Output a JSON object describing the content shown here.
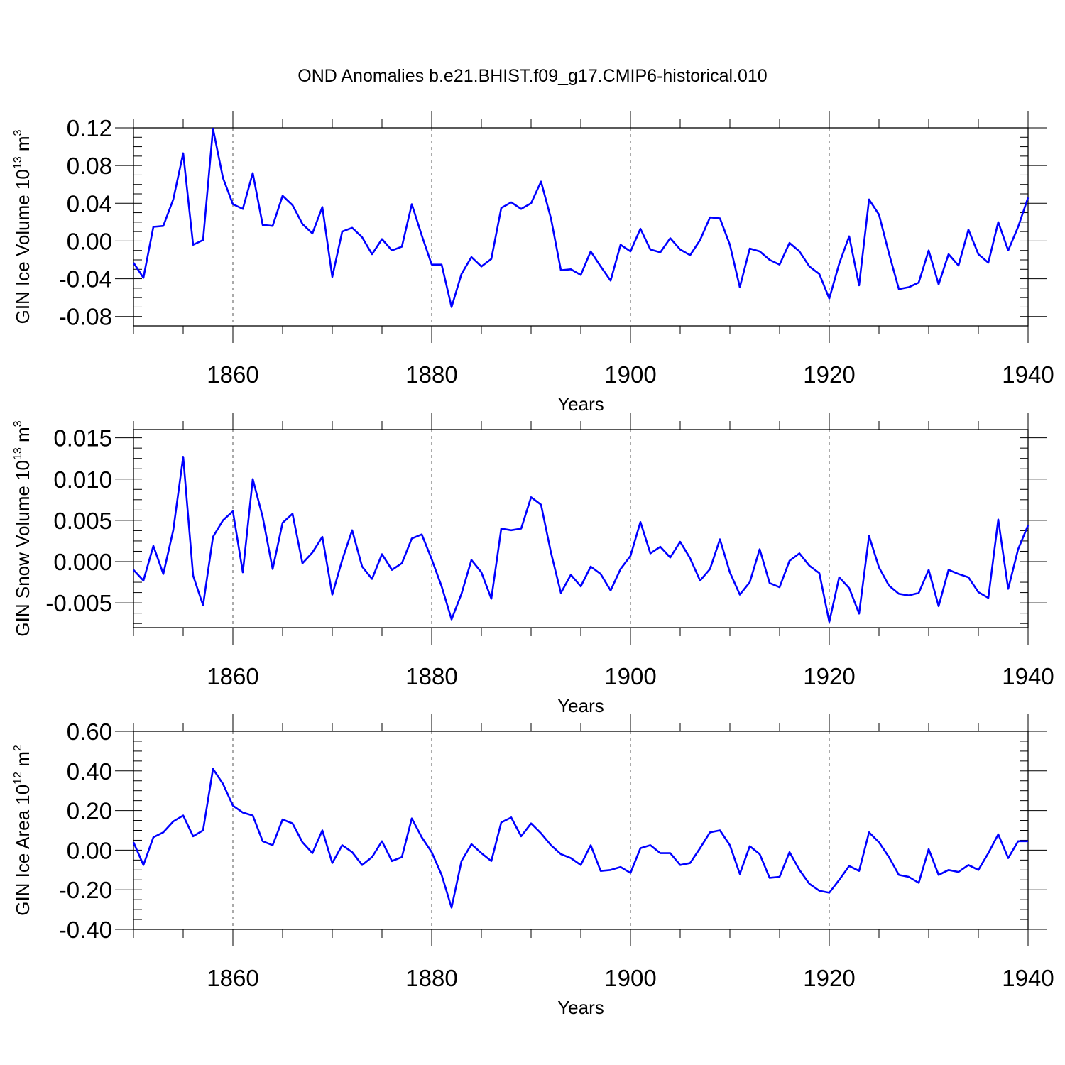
{
  "figure": {
    "title": "OND Anomalies b.e21.BHIST.f09_g17.CMIP6-historical.010",
    "line_color": "#0000ff"
  },
  "chart_data": [
    {
      "type": "line",
      "title": "OND Anomalies b.e21.BHIST.f09_g17.CMIP6-historical.010",
      "xlabel": "Years",
      "ylabel": {
        "main": "GIN Ice Volume 10",
        "exp": "13",
        "unit": " m",
        "unit_exp": "3"
      },
      "xlim": [
        1850,
        1940
      ],
      "ylim": [
        -0.09,
        0.12
      ],
      "xticks": [
        1860,
        1880,
        1900,
        1920,
        1940
      ],
      "xtick_labels": [
        "1860",
        "1880",
        "1900",
        "1920",
        "1940"
      ],
      "yticks": [
        0.12,
        0.08,
        0.04,
        0.0,
        -0.04,
        -0.08
      ],
      "ytick_labels": [
        "0.12",
        "0.08",
        "0.04",
        "0.00",
        "-0.04",
        "-0.08"
      ],
      "grid": "vertical dashed at labeled years",
      "x_start": 1850,
      "values": [
        -0.023,
        -0.039,
        0.015,
        0.016,
        0.044,
        0.093,
        -0.004,
        0.001,
        0.119,
        0.067,
        0.039,
        0.034,
        0.072,
        0.017,
        0.016,
        0.048,
        0.038,
        0.018,
        0.008,
        0.036,
        -0.038,
        0.01,
        0.014,
        0.004,
        -0.014,
        0.002,
        -0.01,
        -0.006,
        0.039,
        0.006,
        -0.025,
        -0.025,
        -0.07,
        -0.035,
        -0.017,
        -0.027,
        -0.019,
        0.035,
        0.041,
        0.034,
        0.04,
        0.063,
        0.024,
        -0.031,
        -0.03,
        -0.036,
        -0.011,
        -0.027,
        -0.042,
        -0.004,
        -0.011,
        0.013,
        -0.009,
        -0.012,
        0.003,
        -0.009,
        -0.015,
        0.001,
        0.025,
        0.024,
        -0.004,
        -0.049,
        -0.008,
        -0.011,
        -0.02,
        -0.025,
        -0.002,
        -0.011,
        -0.027,
        -0.035,
        -0.061,
        -0.024,
        0.005,
        -0.047,
        0.044,
        0.028,
        -0.013,
        -0.051,
        -0.049,
        -0.044,
        -0.01,
        -0.046,
        -0.014,
        -0.026,
        0.012,
        -0.014,
        -0.023,
        0.02,
        -0.01,
        0.015,
        0.046
      ]
    },
    {
      "type": "line",
      "xlabel": "Years",
      "ylabel": {
        "main": "GIN Snow Volume 10",
        "exp": "13",
        "unit": " m",
        "unit_exp": "3"
      },
      "xlim": [
        1850,
        1940
      ],
      "ylim": [
        -0.008,
        0.016
      ],
      "xticks": [
        1860,
        1880,
        1900,
        1920,
        1940
      ],
      "xtick_labels": [
        "1860",
        "1880",
        "1900",
        "1920",
        "1940"
      ],
      "yticks": [
        0.015,
        0.01,
        0.005,
        0.0,
        -0.005
      ],
      "ytick_labels": [
        "0.015",
        "0.010",
        "0.005",
        "0.000",
        "-0.005"
      ],
      "grid": "vertical dashed at labeled years",
      "x_start": 1850,
      "values": [
        -0.001,
        -0.0023,
        0.0019,
        -0.0015,
        0.0038,
        0.0127,
        -0.0017,
        -0.0053,
        0.003,
        0.005,
        0.0061,
        -0.0013,
        0.01,
        0.0054,
        -0.0009,
        0.0047,
        0.0058,
        -0.0002,
        0.0011,
        0.003,
        -0.004,
        0.0002,
        0.0038,
        -0.0006,
        -0.0021,
        0.0009,
        -0.001,
        -0.0002,
        0.0028,
        0.0033,
        0.0003,
        -0.003,
        -0.007,
        -0.0039,
        0.0002,
        -0.0013,
        -0.0045,
        0.004,
        0.0038,
        0.004,
        0.0078,
        0.0069,
        0.0011,
        -0.0038,
        -0.0016,
        -0.003,
        -0.0006,
        -0.0015,
        -0.0035,
        -0.0009,
        0.0007,
        0.0048,
        0.001,
        0.0018,
        0.0005,
        0.0024,
        0.0004,
        -0.0023,
        -0.0009,
        0.0027,
        -0.0013,
        -0.004,
        -0.0025,
        0.0015,
        -0.0026,
        -0.0031,
        0.0001,
        0.001,
        -0.0005,
        -0.0014,
        -0.0073,
        -0.0019,
        -0.0032,
        -0.0063,
        0.0031,
        -0.0007,
        -0.0029,
        -0.0039,
        -0.0041,
        -0.0038,
        -0.001,
        -0.0054,
        -0.001,
        -0.0015,
        -0.0019,
        -0.0037,
        -0.0044,
        0.0051,
        -0.0033,
        0.0015,
        0.0044
      ]
    },
    {
      "type": "line",
      "xlabel": "Years",
      "ylabel": {
        "main": "GIN Ice Area 10",
        "exp": "12",
        "unit": " m",
        "unit_exp": "2"
      },
      "xlim": [
        1850,
        1940
      ],
      "ylim": [
        -0.4,
        0.6
      ],
      "xticks": [
        1860,
        1880,
        1900,
        1920,
        1940
      ],
      "xtick_labels": [
        "1860",
        "1880",
        "1900",
        "1920",
        "1940"
      ],
      "yticks": [
        0.6,
        0.4,
        0.2,
        0.0,
        -0.2,
        -0.4
      ],
      "ytick_labels": [
        "0.60",
        "0.40",
        "0.20",
        "0.00",
        "-0.20",
        "-0.40"
      ],
      "grid": "vertical dashed at labeled years",
      "x_start": 1850,
      "values": [
        0.04,
        -0.075,
        0.065,
        0.09,
        0.145,
        0.175,
        0.07,
        0.1,
        0.41,
        0.335,
        0.225,
        0.19,
        0.175,
        0.045,
        0.025,
        0.155,
        0.135,
        0.04,
        -0.015,
        0.1,
        -0.065,
        0.025,
        -0.01,
        -0.075,
        -0.035,
        0.045,
        -0.055,
        -0.035,
        0.16,
        0.065,
        -0.01,
        -0.125,
        -0.29,
        -0.055,
        0.03,
        -0.015,
        -0.055,
        0.14,
        0.165,
        0.07,
        0.135,
        0.085,
        0.025,
        -0.02,
        -0.04,
        -0.075,
        0.025,
        -0.105,
        -0.1,
        -0.085,
        -0.115,
        0.01,
        0.025,
        -0.015,
        -0.015,
        -0.075,
        -0.065,
        0.01,
        0.09,
        0.1,
        0.025,
        -0.12,
        0.02,
        -0.02,
        -0.14,
        -0.135,
        -0.01,
        -0.1,
        -0.17,
        -0.205,
        -0.215,
        -0.15,
        -0.08,
        -0.105,
        0.09,
        0.04,
        -0.035,
        -0.125,
        -0.135,
        -0.165,
        0.005,
        -0.125,
        -0.1,
        -0.11,
        -0.075,
        -0.1,
        -0.015,
        0.08,
        -0.04,
        0.045,
        0.045
      ]
    }
  ]
}
